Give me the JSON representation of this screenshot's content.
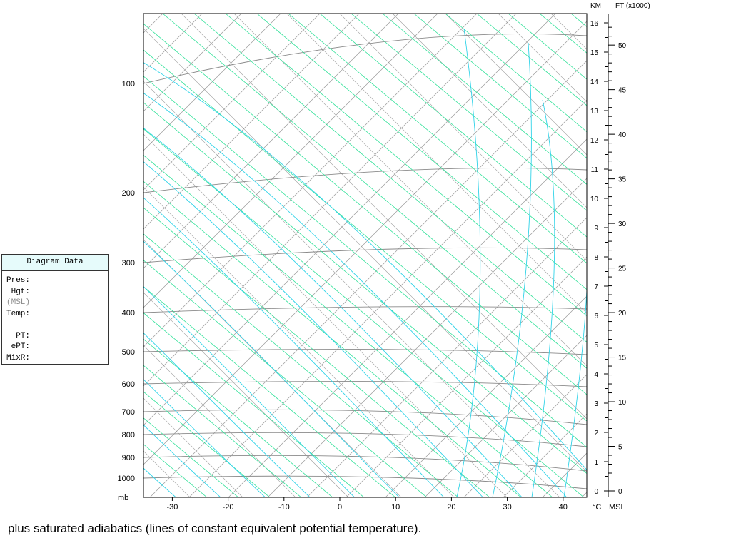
{
  "panel": {
    "title": "Diagram Data",
    "rows": [
      {
        "label": "Pres:",
        "muted": false
      },
      {
        "label": " Hgt:",
        "muted": false
      },
      {
        "label": "(MSL)",
        "muted": true
      },
      {
        "label": "Temp:",
        "muted": false
      },
      {
        "label": "",
        "muted": false
      },
      {
        "label": "  PT:",
        "muted": false
      },
      {
        "label": " ePT:",
        "muted": false
      },
      {
        "label": "MixR:",
        "muted": false
      }
    ]
  },
  "axes": {
    "pressure_unit": "mb",
    "pressure_levels": [
      100,
      200,
      300,
      400,
      500,
      600,
      700,
      800,
      900,
      1000
    ],
    "temperature_unit": "°C",
    "temperature_ticks": [
      -30,
      -20,
      -10,
      0,
      10,
      20,
      30,
      40
    ],
    "km_title": "KM",
    "km_ticks": [
      0,
      1,
      2,
      3,
      4,
      5,
      6,
      7,
      8,
      9,
      10,
      11,
      12,
      13,
      14,
      15,
      16
    ],
    "ft_title": "FT (x1000)",
    "ft_ticks": [
      0,
      5,
      10,
      15,
      20,
      25,
      30,
      35,
      40,
      45,
      50
    ],
    "msl_label": "MSL"
  },
  "colors": {
    "isotherm_adiabat": "#9a9a9a",
    "isobar": "#8a8a8a",
    "dry_adiabat": "#33e19a",
    "saturated_adiabat": "#2fd3e8",
    "panel_header": "#e6fbfb"
  },
  "caption": "plus saturated adiabatics (lines of constant equivalent potential temperature)."
}
